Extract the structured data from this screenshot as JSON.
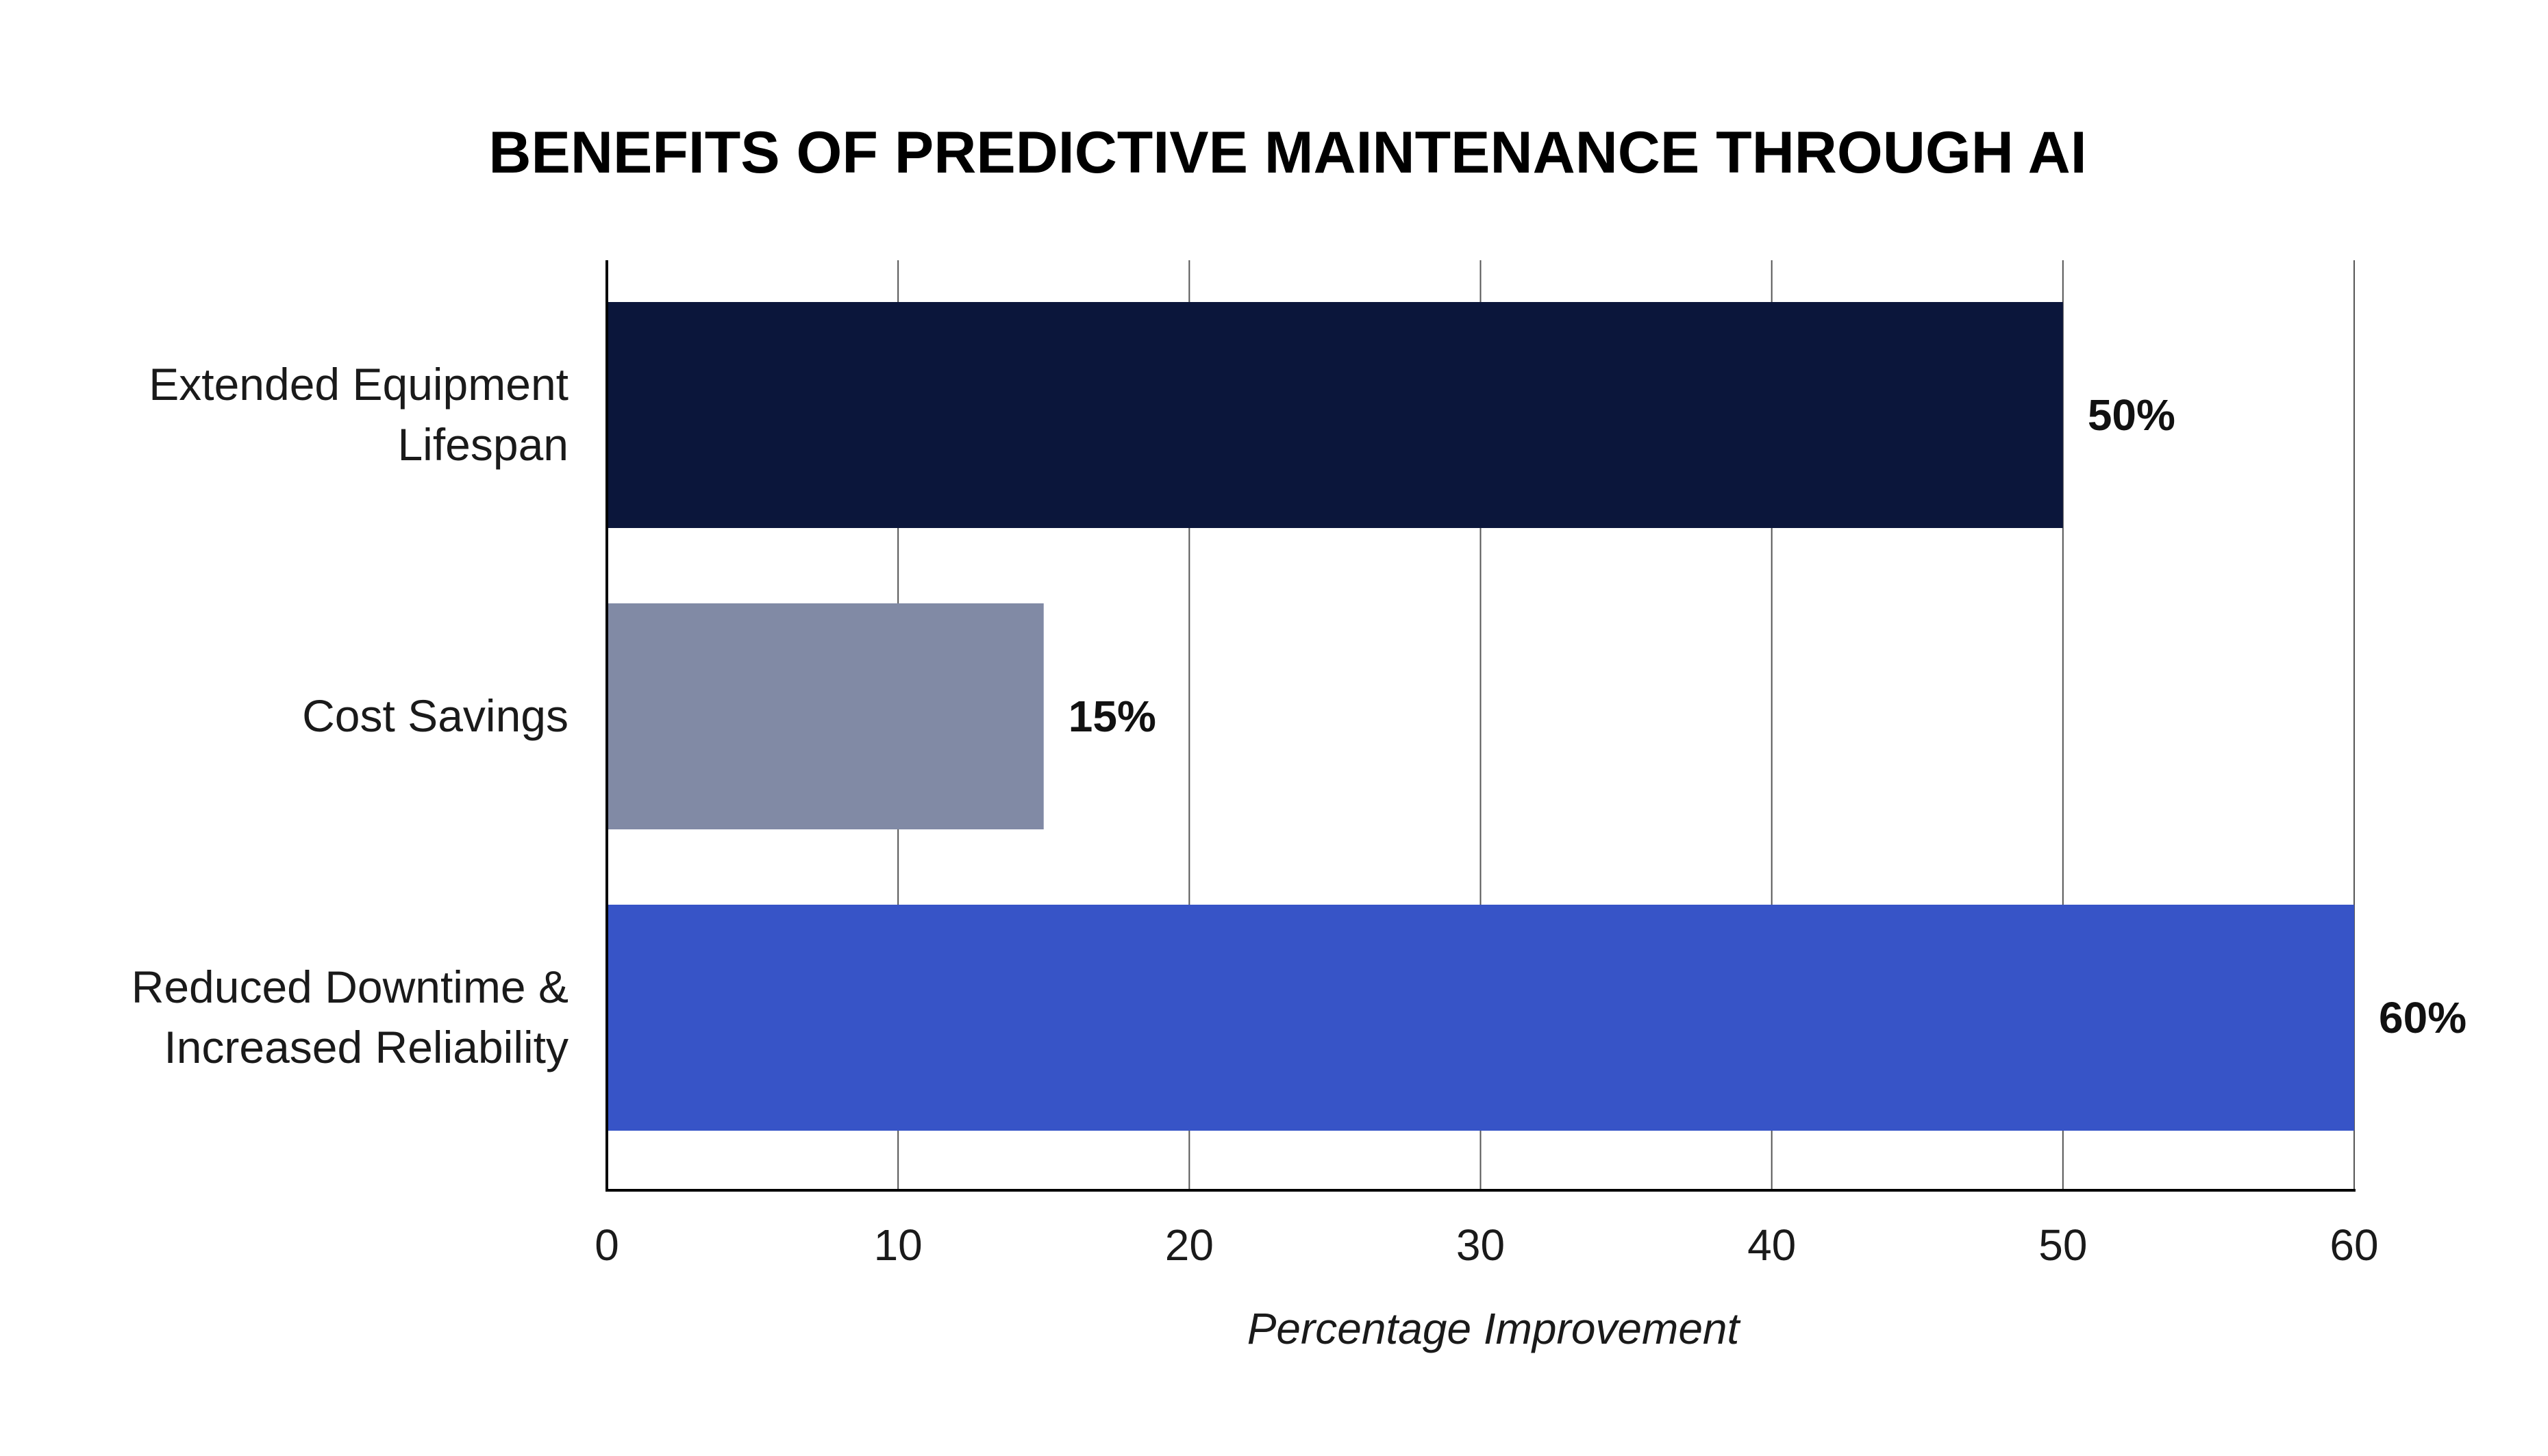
{
  "chart_data": {
    "type": "bar",
    "orientation": "horizontal",
    "title": "BENEFITS OF PREDICTIVE MAINTENANCE THROUGH AI",
    "xlabel": "Percentage Improvement",
    "ylabel": "",
    "categories": [
      [
        "Extended Equipment",
        "Lifespan"
      ],
      [
        "Cost Savings"
      ],
      [
        "Reduced Downtime &",
        "Increased Reliability"
      ]
    ],
    "values": [
      50,
      15,
      60
    ],
    "data_labels": [
      "50%",
      "15%",
      "60%"
    ],
    "colors": [
      "#0b163b",
      "#818aa5",
      "#3754c7"
    ],
    "xlim": [
      0,
      60
    ],
    "xticks": [
      0,
      10,
      20,
      30,
      40,
      50,
      60
    ],
    "grid": "vertical",
    "legend": "none"
  }
}
